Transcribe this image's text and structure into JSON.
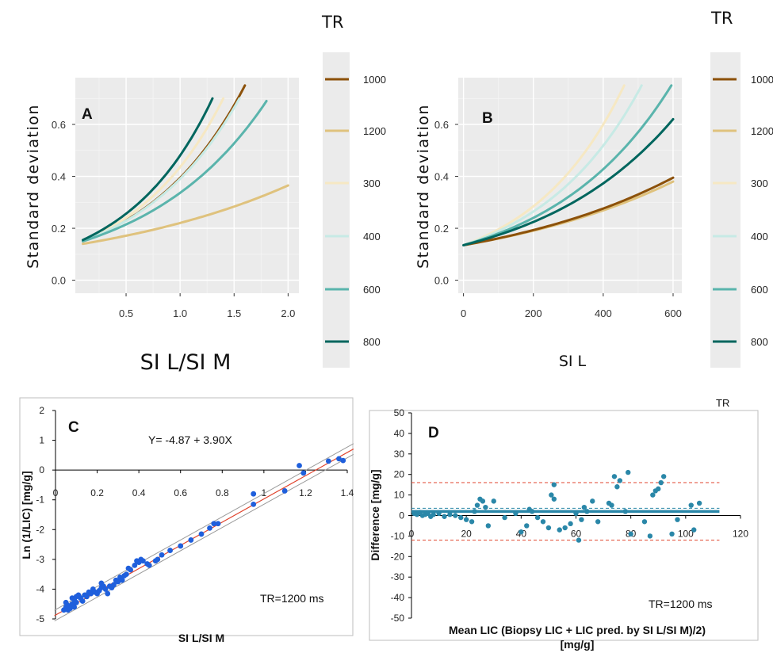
{
  "chart_data": [
    {
      "panel": "A",
      "type": "line",
      "xlabel": "SI L/SI M",
      "ylabel": "Standard deviation",
      "xlim": [
        0.03,
        2.1
      ],
      "ylim": [
        -0.05,
        0.78
      ],
      "xticks": [
        0.5,
        1.0,
        1.5,
        2.0
      ],
      "xtick_labels": [
        "0.5",
        "1.0",
        "1.5",
        "2.0"
      ],
      "yticks": [
        0.0,
        0.2,
        0.4,
        0.6
      ],
      "ytick_labels": [
        "0.0",
        "0.2",
        "0.4",
        "0.6"
      ],
      "grid": true,
      "legend_position": "right",
      "legend_title": "TR",
      "series": [
        {
          "name": "1000",
          "color": "#8c510a",
          "x": [
            0.1,
            1.6
          ],
          "y0": 0.15,
          "y1": 0.75
        },
        {
          "name": "1200",
          "color": "#dfc27d",
          "x": [
            0.1,
            2.0
          ],
          "y0": 0.14,
          "y1": 0.365
        },
        {
          "name": "300",
          "color": "#f6e8c3",
          "x": [
            0.1,
            1.4
          ],
          "y0": 0.15,
          "y1": 0.7
        },
        {
          "name": "400",
          "color": "#c7eae5",
          "x": [
            0.1,
            1.55
          ],
          "y0": 0.15,
          "y1": 0.7
        },
        {
          "name": "600",
          "color": "#5ab4ac",
          "x": [
            0.1,
            1.8
          ],
          "y0": 0.15,
          "y1": 0.69
        },
        {
          "name": "800",
          "color": "#01665e",
          "x": [
            0.1,
            1.3
          ],
          "y0": 0.155,
          "y1": 0.7
        }
      ]
    },
    {
      "panel": "B",
      "type": "line",
      "xlabel": "SI L",
      "ylabel": "Standard deviation",
      "xlim": [
        -15,
        625
      ],
      "ylim": [
        -0.05,
        0.78
      ],
      "xticks": [
        0,
        200,
        400,
        600
      ],
      "xtick_labels": [
        "0",
        "200",
        "400",
        "600"
      ],
      "yticks": [
        0.0,
        0.2,
        0.4,
        0.6
      ],
      "ytick_labels": [
        "0.0",
        "0.2",
        "0.4",
        "0.6"
      ],
      "grid": true,
      "legend_position": "right",
      "legend_title": "TR",
      "series": [
        {
          "name": "1000",
          "color": "#8c510a",
          "x": [
            0,
            600
          ],
          "y0": 0.135,
          "y1": 0.395
        },
        {
          "name": "1200",
          "color": "#dfc27d",
          "x": [
            0,
            600
          ],
          "y0": 0.135,
          "y1": 0.38
        },
        {
          "name": "300",
          "color": "#f6e8c3",
          "x": [
            0,
            460
          ],
          "y0": 0.135,
          "y1": 0.75
        },
        {
          "name": "400",
          "color": "#c7eae5",
          "x": [
            0,
            510
          ],
          "y0": 0.135,
          "y1": 0.75
        },
        {
          "name": "600",
          "color": "#5ab4ac",
          "x": [
            0,
            595
          ],
          "y0": 0.135,
          "y1": 0.75
        },
        {
          "name": "800",
          "color": "#01665e",
          "x": [
            0,
            600
          ],
          "y0": 0.135,
          "y1": 0.62
        }
      ]
    },
    {
      "panel": "C",
      "type": "scatter",
      "xlabel": "SI L/SI M",
      "ylabel": "Ln (1/LIC) [mg/g]",
      "equation": "Y= -4.87 + 3.90X",
      "note": "TR=1200 ms",
      "xlim": [
        0,
        1.4
      ],
      "ylim": [
        -5,
        2
      ],
      "xticks": [
        0,
        0.2,
        0.4,
        0.6,
        0.8,
        1,
        1.2,
        1.4
      ],
      "xtick_labels": [
        "0",
        "0.2",
        "0.4",
        "0.6",
        "0.8",
        "1",
        "1.2",
        "1.4"
      ],
      "yticks": [
        -5,
        -4,
        -3,
        -2,
        -1,
        0,
        1,
        2
      ],
      "ytick_labels": [
        "-5",
        "-4",
        "-3",
        "-2",
        "-1",
        "0",
        "1",
        "2"
      ],
      "fit": {
        "intercept": -4.87,
        "slope": 3.9,
        "color": "#e0452f"
      },
      "ci_offset": 0.18,
      "point_color": "#1f5fdc",
      "points": [
        [
          0.04,
          -4.7
        ],
        [
          0.05,
          -4.6
        ],
        [
          0.06,
          -4.55
        ],
        [
          0.07,
          -4.65
        ],
        [
          0.08,
          -4.5
        ],
        [
          0.09,
          -4.6
        ],
        [
          0.1,
          -4.45
        ],
        [
          0.05,
          -4.45
        ],
        [
          0.06,
          -4.7
        ],
        [
          0.08,
          -4.3
        ],
        [
          0.09,
          -4.35
        ],
        [
          0.1,
          -4.25
        ],
        [
          0.11,
          -4.2
        ],
        [
          0.12,
          -4.3
        ],
        [
          0.13,
          -4.4
        ],
        [
          0.14,
          -4.2
        ],
        [
          0.15,
          -4.25
        ],
        [
          0.16,
          -4.1
        ],
        [
          0.17,
          -4.15
        ],
        [
          0.18,
          -4.0
        ],
        [
          0.19,
          -4.1
        ],
        [
          0.2,
          -4.15
        ],
        [
          0.21,
          -4.05
        ],
        [
          0.22,
          -3.95
        ],
        [
          0.22,
          -3.8
        ],
        [
          0.23,
          -3.9
        ],
        [
          0.24,
          -4.0
        ],
        [
          0.25,
          -4.15
        ],
        [
          0.26,
          -3.9
        ],
        [
          0.27,
          -3.95
        ],
        [
          0.28,
          -3.85
        ],
        [
          0.29,
          -3.7
        ],
        [
          0.3,
          -3.75
        ],
        [
          0.31,
          -3.6
        ],
        [
          0.32,
          -3.7
        ],
        [
          0.33,
          -3.55
        ],
        [
          0.34,
          -3.5
        ],
        [
          0.35,
          -3.3
        ],
        [
          0.36,
          -3.35
        ],
        [
          0.38,
          -3.2
        ],
        [
          0.39,
          -3.05
        ],
        [
          0.4,
          -3.1
        ],
        [
          0.41,
          -3.0
        ],
        [
          0.42,
          -3.05
        ],
        [
          0.44,
          -3.15
        ],
        [
          0.45,
          -3.2
        ],
        [
          0.48,
          -3.05
        ],
        [
          0.49,
          -3.0
        ],
        [
          0.51,
          -2.85
        ],
        [
          0.55,
          -2.7
        ],
        [
          0.6,
          -2.55
        ],
        [
          0.65,
          -2.35
        ],
        [
          0.7,
          -2.15
        ],
        [
          0.74,
          -1.95
        ],
        [
          0.76,
          -1.8
        ],
        [
          0.78,
          -1.8
        ],
        [
          0.95,
          -1.15
        ],
        [
          0.95,
          -0.8
        ],
        [
          1.1,
          -0.7
        ],
        [
          1.17,
          0.15
        ],
        [
          1.19,
          -0.1
        ],
        [
          1.31,
          0.3
        ],
        [
          1.36,
          0.38
        ],
        [
          1.38,
          0.32
        ]
      ]
    },
    {
      "panel": "D",
      "type": "scatter",
      "xlabel": "Mean LIC (Biopsy LIC + LIC pred. by SI L/SI M)/2)",
      "xlabel2": "[mg/g]",
      "ylabel": "Difference [mg/g]",
      "legend_title": "TR",
      "note": "TR=1200 ms",
      "xlim": [
        0,
        120
      ],
      "ylim": [
        -50,
        50
      ],
      "xticks": [
        0,
        20,
        40,
        60,
        80,
        100,
        120
      ],
      "xtick_labels": [
        "0",
        "20",
        "40",
        "60",
        "80",
        "100",
        "120"
      ],
      "yticks": [
        -50,
        -40,
        -30,
        -20,
        -10,
        0,
        10,
        20,
        30,
        40,
        50
      ],
      "ytick_labels": [
        "-50",
        "-40",
        "-30",
        "-20",
        "-10",
        "0",
        "10",
        "20",
        "30",
        "40",
        "50"
      ],
      "mean_line": 2,
      "ci_mean_upper": 3.5,
      "upper_loa": 16,
      "lower_loa": -12,
      "point_color": "#2a87a8",
      "points": [
        [
          1,
          1
        ],
        [
          2,
          0.5
        ],
        [
          3,
          1.5
        ],
        [
          4,
          0
        ],
        [
          5,
          0.5
        ],
        [
          6,
          1
        ],
        [
          7,
          -0.5
        ],
        [
          8,
          0.5
        ],
        [
          10,
          1
        ],
        [
          12,
          -0.5
        ],
        [
          14,
          0.5
        ],
        [
          16,
          0
        ],
        [
          18,
          -1
        ],
        [
          20,
          -2
        ],
        [
          22,
          -3
        ],
        [
          23,
          2
        ],
        [
          24,
          5
        ],
        [
          25,
          8
        ],
        [
          26,
          7
        ],
        [
          27,
          4
        ],
        [
          28,
          -5
        ],
        [
          30,
          7
        ],
        [
          34,
          -1
        ],
        [
          38,
          1
        ],
        [
          40,
          -8
        ],
        [
          42,
          -5
        ],
        [
          43,
          3
        ],
        [
          44,
          2
        ],
        [
          46,
          -1
        ],
        [
          48,
          -3
        ],
        [
          50,
          -6
        ],
        [
          51,
          10
        ],
        [
          52,
          8
        ],
        [
          52,
          15
        ],
        [
          54,
          -7
        ],
        [
          56,
          -6
        ],
        [
          58,
          -4
        ],
        [
          60,
          1
        ],
        [
          61,
          -12
        ],
        [
          62,
          -2
        ],
        [
          63,
          4
        ],
        [
          64,
          2
        ],
        [
          66,
          7
        ],
        [
          68,
          -3
        ],
        [
          72,
          6
        ],
        [
          73,
          5
        ],
        [
          74,
          19
        ],
        [
          75,
          14
        ],
        [
          76,
          17
        ],
        [
          78,
          2
        ],
        [
          79,
          21
        ],
        [
          80,
          -9
        ],
        [
          85,
          -3
        ],
        [
          87,
          -10
        ],
        [
          88,
          10
        ],
        [
          89,
          12
        ],
        [
          90,
          13
        ],
        [
          91,
          16
        ],
        [
          92,
          19
        ],
        [
          95,
          -9
        ],
        [
          97,
          -2
        ],
        [
          102,
          5
        ],
        [
          103,
          -7
        ],
        [
          105,
          6
        ]
      ]
    }
  ]
}
